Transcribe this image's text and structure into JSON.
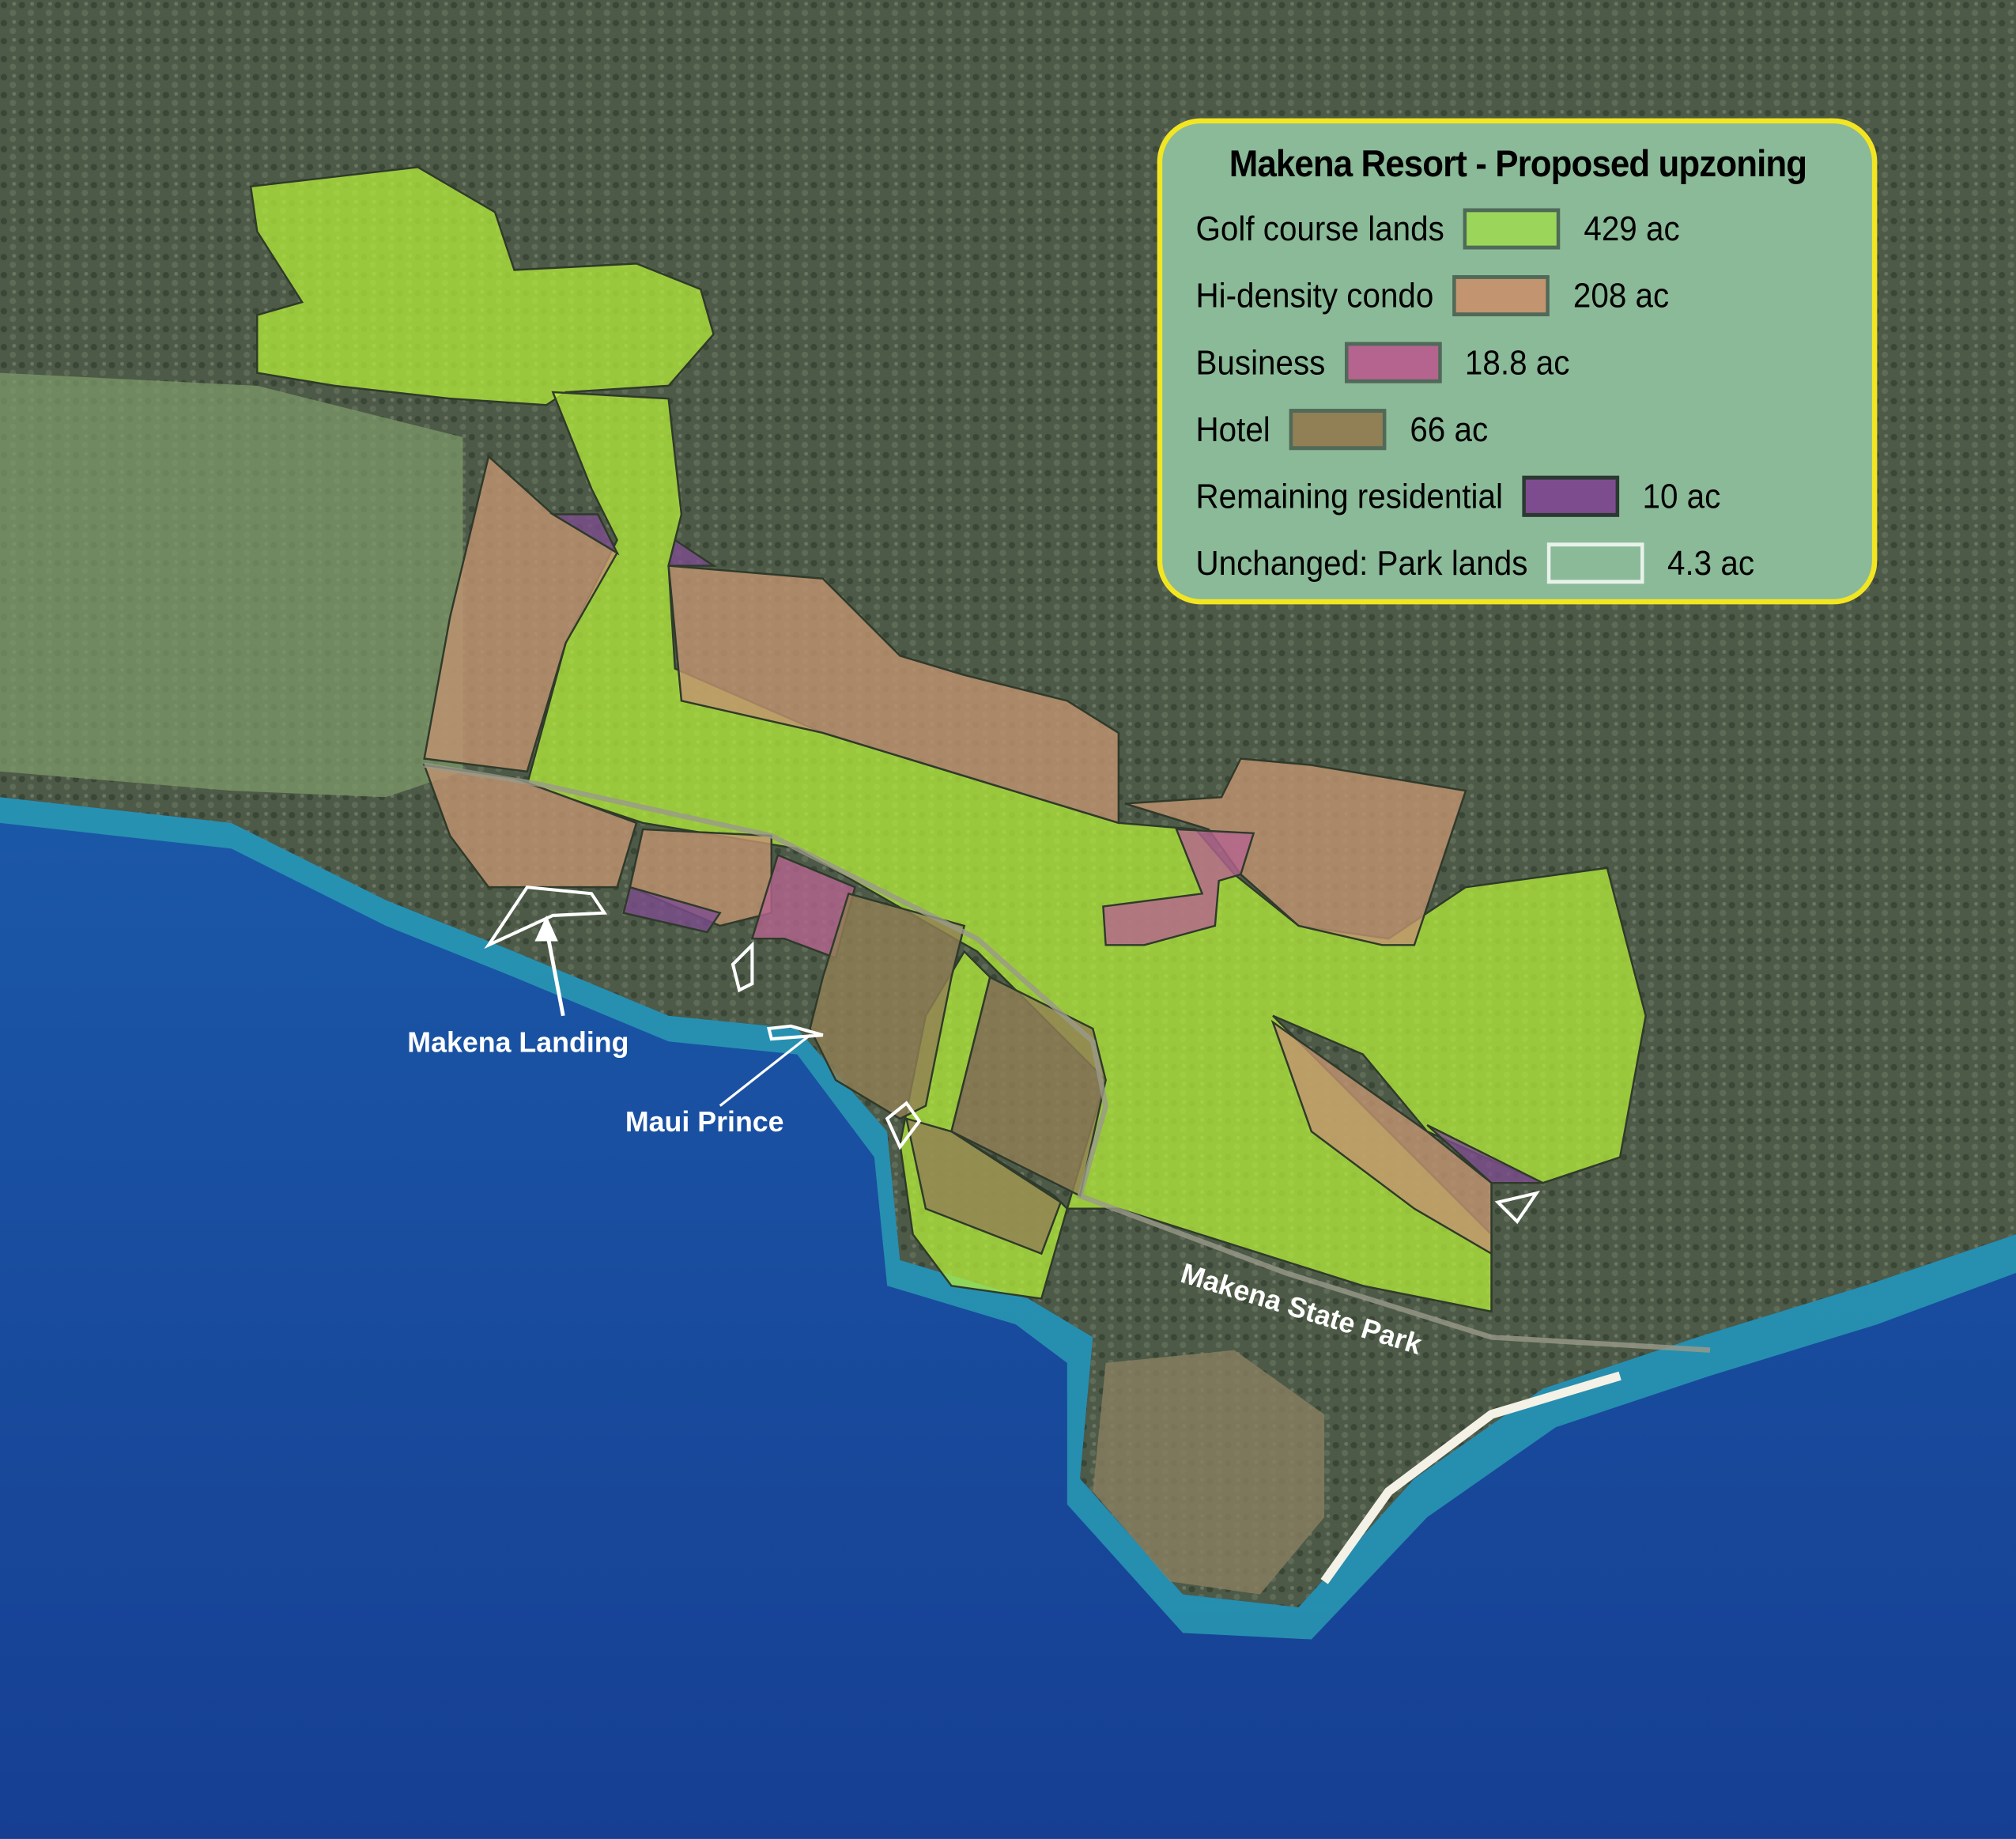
{
  "legend": {
    "title": "Makena Resort - Proposed upzoning",
    "items": [
      {
        "label": "Golf course lands",
        "area": "429 ac",
        "color": "#9bd65a",
        "border": "#4f6a58"
      },
      {
        "label": "Hi-density condo",
        "area": "208 ac",
        "color": "#c29470",
        "border": "#4f6a58"
      },
      {
        "label": "Business",
        "area": "18.8 ac",
        "color": "#b5648f",
        "border": "#4f6a58"
      },
      {
        "label": "Hotel",
        "area": "66 ac",
        "color": "#917f55",
        "border": "#4f6a58"
      },
      {
        "label": "Remaining residential",
        "area": "10 ac",
        "color": "#7d4c8f",
        "border": "#2a3a30"
      },
      {
        "label": "Unchanged: Park lands",
        "area": "4.3 ac",
        "color": "#8bba98",
        "border": "#e8f2ea"
      }
    ],
    "frame_color": "#f2e622",
    "background_color": "#8bba98"
  },
  "map_labels": {
    "landing": "Makena Landing",
    "hotel": "Maui Prince",
    "park": "Makena State Park"
  },
  "colors": {
    "land": "#4d5a47",
    "ocean": "#1b5aa6",
    "shallow": "#2aa3b8"
  }
}
